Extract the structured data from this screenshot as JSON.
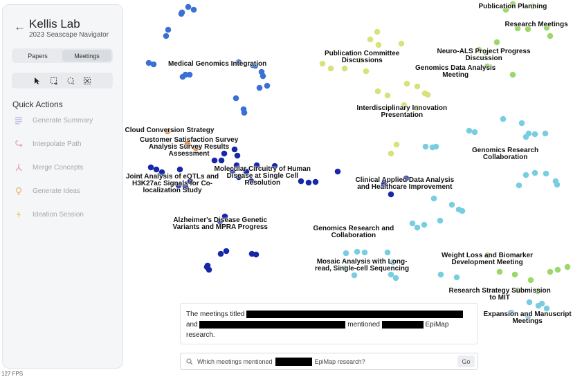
{
  "sidebar": {
    "title": "Kellis Lab",
    "subtitle": "2023 Seascape Navigator",
    "tabs": [
      {
        "label": "Papers",
        "active": false
      },
      {
        "label": "Meetings",
        "active": true
      }
    ],
    "tools": [
      "pointer-tool",
      "rect-select-tool",
      "lasso-tool",
      "region-select-tool"
    ],
    "quick_actions_title": "Quick Actions",
    "actions": [
      {
        "label": "Generate Summary",
        "icon": "list-icon",
        "color": "#b9a9e6"
      },
      {
        "label": "Interpolate Path",
        "icon": "path-icon",
        "color": "#e89ab8"
      },
      {
        "label": "Merge Concepts",
        "icon": "merge-icon",
        "color": "#e896a0"
      },
      {
        "label": "Generate Ideas",
        "icon": "lightbulb-icon",
        "color": "#e9b27a"
      },
      {
        "label": "Ideation Session",
        "icon": "bolt-icon",
        "color": "#e9cc6a"
      }
    ]
  },
  "colors": {
    "dark_blue": "#1627a8",
    "blue": "#3a6fd6",
    "teal": "#79cde0",
    "green": "#9ad868",
    "yellow": "#d9e17a",
    "orange": "#e88a4a"
  },
  "clusters": [
    "Publication Planning",
    "Research Meetings",
    "Neuro-ALS Project Progress\nDiscussion",
    "Publication Committee\nDiscussions",
    "Genomics Data Analysis\nMeeting",
    "Medical Genomics Integration",
    "Interdisciplinary Innovation\nPresentation",
    "Cloud Conversion Strategy",
    "Customer Satisfaction Survey\nAnalysis Survey Results\nAssessment",
    "Genomics Research\nCollaboration",
    "Molecular Circuitry of Human\nDisease at Single Cell\nResolution",
    "Joint Analysis of eQTLs and\nH3K27ac Signals for Co-\nlocalization Study",
    "Clinical Applied Data Analysis\nand Healthcare Improvement",
    "Alzheimer's Disease Genetic\nVariants and MPRA Progress",
    "Genomics Research and\nCollaboration",
    "Weight Loss and Biomarker\nDevelopment Meeting",
    "Mosaic Analysis with Long-\nread, Single-cell Sequencing",
    "Research Strategy Submission\nto MIT",
    "Expansion and Manuscript\nMeetings"
  ],
  "answer": {
    "p1": "The meetings titled",
    "p2": "and",
    "p3": "mentioned",
    "p4": "EpiMap",
    "p5": "research."
  },
  "search": {
    "prefix": "Which meetings mentioned",
    "suffix": "EpiMap research?",
    "go_label": "Go"
  },
  "fps": "127 FPS"
}
